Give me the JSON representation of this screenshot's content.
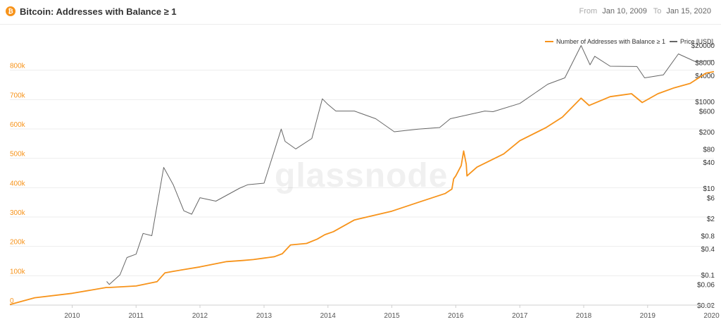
{
  "header": {
    "icon": "bitcoin-icon",
    "title": "Bitcoin: Addresses with Balance ≥ 1",
    "from_label": "From",
    "from_value": "Jan 10, 2009",
    "to_label": "To",
    "to_value": "Jan 15, 2020"
  },
  "watermark": "glassnode",
  "chart_data": {
    "type": "line",
    "x_type": "date",
    "x_range": [
      "2009-01-10",
      "2020-01-15"
    ],
    "x_ticks": [
      "2010",
      "2011",
      "2012",
      "2013",
      "2014",
      "2015",
      "2016",
      "2017",
      "2018",
      "2019",
      "2020"
    ],
    "legend_position": "top-right",
    "grid": "horizontal",
    "y_left": {
      "range": [
        0,
        900000
      ],
      "ticks": [
        0,
        100000,
        200000,
        300000,
        400000,
        500000,
        600000,
        700000,
        800000
      ],
      "tick_labels": [
        "0",
        "100k",
        "200k",
        "300k",
        "400k",
        "500k",
        "600k",
        "700k",
        "800k"
      ],
      "color": "#f7931a"
    },
    "y_right": {
      "scale": "log",
      "range": [
        0.02,
        25000
      ],
      "ticks": [
        0.02,
        0.06,
        0.1,
        0.4,
        0.8,
        2,
        6,
        10,
        40,
        80,
        200,
        600,
        1000,
        4000,
        8000,
        20000
      ],
      "tick_labels": [
        "$0.02",
        "$0.06",
        "$0.1",
        "$0.4",
        "$0.8",
        "$2",
        "$6",
        "$10",
        "$40",
        "$80",
        "$200",
        "$600",
        "$1000",
        "$4000",
        "$8000",
        "$20000"
      ],
      "color": "#333333"
    },
    "series": [
      {
        "name": "Number of Addresses with Balance ≥ 1",
        "axis": "left",
        "color": "#f7931a",
        "x": [
          "2009-01-10",
          "2009-06-01",
          "2010-01-01",
          "2010-07-15",
          "2010-08-01",
          "2011-01-01",
          "2011-05-01",
          "2011-06-15",
          "2011-08-01",
          "2012-01-01",
          "2012-06-01",
          "2012-09-01",
          "2012-11-01",
          "2013-01-01",
          "2013-03-01",
          "2013-04-15",
          "2013-06-01",
          "2013-09-01",
          "2013-11-01",
          "2013-12-15",
          "2014-02-01",
          "2014-06-01",
          "2015-01-01",
          "2015-06-01",
          "2015-11-01",
          "2015-12-10",
          "2015-12-20",
          "2016-01-01",
          "2016-02-01",
          "2016-02-15",
          "2016-03-01",
          "2016-03-05",
          "2016-05-01",
          "2016-10-01",
          "2017-01-01",
          "2017-06-01",
          "2017-09-01",
          "2017-12-17",
          "2018-02-01",
          "2018-06-01",
          "2018-10-01",
          "2018-12-01",
          "2019-03-01",
          "2019-06-01",
          "2019-09-01",
          "2019-12-01",
          "2020-01-15"
        ],
        "y": [
          2000,
          25000,
          40000,
          60000,
          60000,
          65000,
          80000,
          110000,
          115000,
          130000,
          148000,
          152000,
          155000,
          160000,
          165000,
          175000,
          205000,
          210000,
          225000,
          240000,
          250000,
          290000,
          320000,
          350000,
          380000,
          395000,
          430000,
          440000,
          475000,
          525000,
          480000,
          440000,
          470000,
          515000,
          560000,
          605000,
          640000,
          705000,
          680000,
          710000,
          720000,
          690000,
          720000,
          740000,
          755000,
          790000,
          795000
        ]
      },
      {
        "name": "Price [USD]",
        "axis": "right",
        "color": "#666666",
        "x": [
          "2010-07-17",
          "2010-08-01",
          "2010-10-01",
          "2010-11-10",
          "2011-01-01",
          "2011-02-10",
          "2011-04-01",
          "2011-06-08",
          "2011-08-01",
          "2011-10-01",
          "2011-11-15",
          "2012-01-01",
          "2012-04-01",
          "2012-08-15",
          "2012-10-01",
          "2013-01-01",
          "2013-04-09",
          "2013-05-01",
          "2013-07-01",
          "2013-10-01",
          "2013-11-30",
          "2014-01-01",
          "2014-02-15",
          "2014-06-01",
          "2014-10-01",
          "2015-01-15",
          "2015-06-01",
          "2015-10-01",
          "2015-12-01",
          "2016-06-15",
          "2016-08-01",
          "2017-01-01",
          "2017-06-10",
          "2017-09-15",
          "2017-12-17",
          "2018-02-06",
          "2018-03-05",
          "2018-06-01",
          "2018-11-01",
          "2018-12-15",
          "2019-04-01",
          "2019-06-26",
          "2019-10-01",
          "2020-01-15"
        ],
        "y": [
          0.07,
          0.06,
          0.1,
          0.25,
          0.3,
          0.9,
          0.8,
          30,
          12,
          3,
          2.5,
          6,
          5,
          10,
          12,
          13,
          230,
          120,
          80,
          140,
          1150,
          850,
          600,
          600,
          400,
          200,
          230,
          250,
          400,
          600,
          580,
          900,
          2500,
          3500,
          19500,
          7000,
          11000,
          6500,
          6400,
          3500,
          4100,
          12500,
          8300,
          8900
        ]
      }
    ]
  }
}
